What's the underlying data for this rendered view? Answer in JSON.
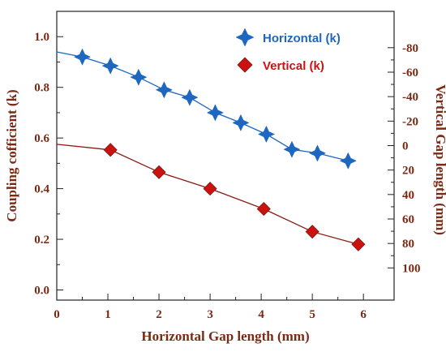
{
  "chart_data": {
    "type": "line",
    "xlabel": "Horizontal Gap length (mm)",
    "ylabel": "Coupling cofficient (k)",
    "y2label": "Vertical Gap length (mm)",
    "xlim": [
      0,
      6.6
    ],
    "ylim": [
      -0.04,
      1.1
    ],
    "xticks": [
      0,
      1,
      2,
      3,
      4,
      5,
      6
    ],
    "yticks": [
      0.0,
      0.2,
      0.4,
      0.6,
      0.8,
      1.0
    ],
    "ytick_labels": [
      "0.0",
      "0.2",
      "0.4",
      "0.6",
      "0.8",
      "1.0"
    ],
    "y2ticks": [
      -80,
      -60,
      -40,
      -20,
      0,
      20,
      40,
      60,
      80,
      100
    ],
    "y2_mapping": {
      "y2_at_k0": 118,
      "y2_per_k": -207
    },
    "grid": false,
    "legend_position": "top-right",
    "series": [
      {
        "name": "Horizontal (k)",
        "color": "#1d67c0",
        "line_color": "#1d67c0",
        "marker": "star4",
        "x": [
          0.5,
          1.05,
          1.6,
          2.1,
          2.6,
          3.1,
          3.6,
          4.1,
          4.6,
          5.1,
          5.7
        ],
        "y": [
          0.92,
          0.885,
          0.84,
          0.79,
          0.76,
          0.7,
          0.66,
          0.615,
          0.555,
          0.54,
          0.51
        ],
        "line_start": {
          "x": 0,
          "y": 0.94
        }
      },
      {
        "name": "Vertical (k)",
        "color": "#cc1111",
        "line_color": "#8b1a10",
        "marker": "diamond",
        "x": [
          1.05,
          2.0,
          3.0,
          4.05,
          5.0,
          5.9
        ],
        "y": [
          0.553,
          0.465,
          0.4,
          0.32,
          0.23,
          0.18
        ],
        "line_start": {
          "x": 0,
          "y": 0.575
        }
      }
    ]
  },
  "colors": {
    "axis_text": "#7a2a14",
    "axis_line": "#222222"
  }
}
